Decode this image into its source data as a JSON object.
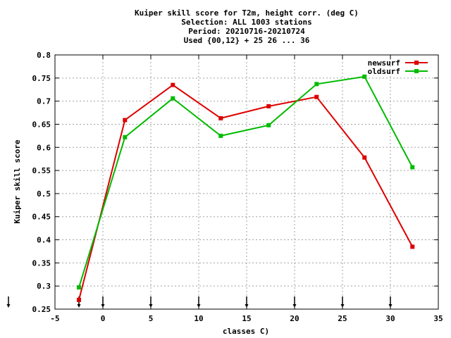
{
  "chart_data": {
    "type": "line",
    "title_lines": [
      "Kuiper skill score  for T2m, height corr. (deg C)",
      "Selection: ALL   1003 stations",
      "Period: 20210716-20210724",
      "Used {00,12} + 25 26 ... 36"
    ],
    "xlabel": "classes C)",
    "ylabel": "Kuiper skill score",
    "xlim": [
      -5,
      35
    ],
    "ylim": [
      0.25,
      0.8
    ],
    "x_ticks": [
      -5,
      0,
      5,
      10,
      15,
      20,
      25,
      30,
      35
    ],
    "x_tick_labels": [
      "-5",
      "0",
      "5",
      "10",
      "15",
      "20",
      "25",
      "30",
      "35"
    ],
    "y_ticks": [
      0.25,
      0.3,
      0.35,
      0.4,
      0.45,
      0.5,
      0.55,
      0.6,
      0.65,
      0.7,
      0.75,
      0.8
    ],
    "y_tick_labels": [
      "0.25",
      "0.3",
      "0.35",
      "0.4",
      "0.45",
      "0.5",
      "0.55",
      "0.6",
      "0.65",
      "0.7",
      "0.75",
      "0.8"
    ],
    "grid": true,
    "legend_position": "top-right",
    "arrow_markers_x": [
      -2.5,
      0,
      5,
      10,
      15,
      20,
      25,
      30
    ],
    "series": [
      {
        "name": "newsurf",
        "color": "#dd0000",
        "x": [
          -2.5,
          2.3,
          7.3,
          12.3,
          17.3,
          22.3,
          27.3,
          32.3
        ],
        "y": [
          0.27,
          0.659,
          0.735,
          0.663,
          0.689,
          0.709,
          0.578,
          0.385
        ]
      },
      {
        "name": "oldsurf",
        "color": "#00bb00",
        "x": [
          -2.5,
          2.3,
          7.3,
          12.3,
          17.3,
          22.3,
          27.3,
          32.3
        ],
        "y": [
          0.297,
          0.622,
          0.706,
          0.625,
          0.648,
          0.737,
          0.753,
          0.557
        ]
      }
    ]
  }
}
